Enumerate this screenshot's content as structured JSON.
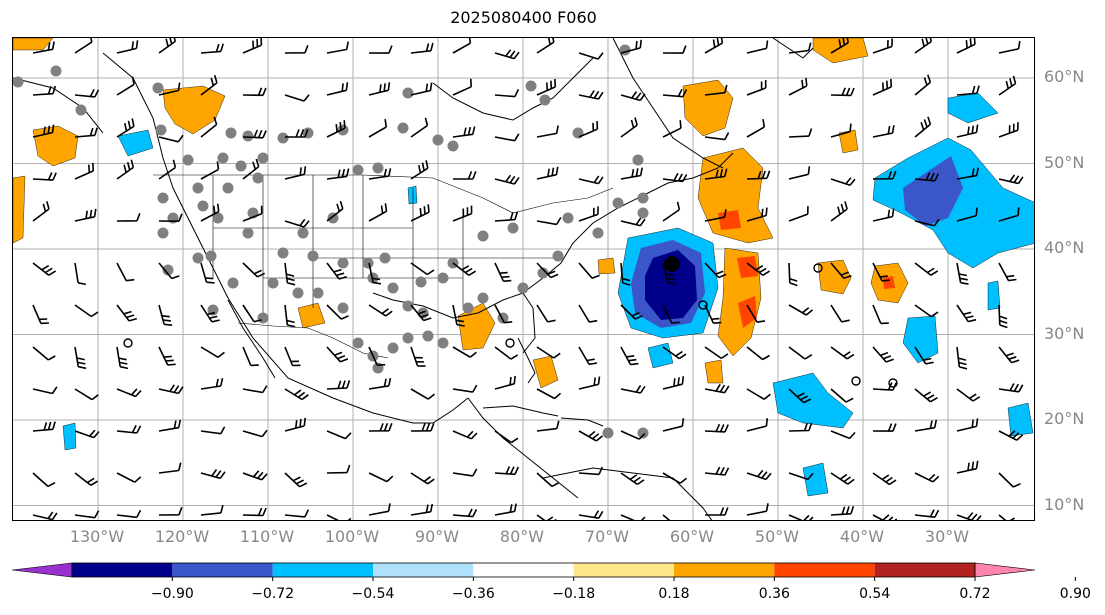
{
  "title": "2025080400 F060",
  "lat_labels": [
    {
      "text": "60°N",
      "lat": 60
    },
    {
      "text": "50°N",
      "lat": 50
    },
    {
      "text": "40°N",
      "lat": 40
    },
    {
      "text": "30°N",
      "lat": 30
    },
    {
      "text": "20°N",
      "lat": 20
    },
    {
      "text": "10°N",
      "lat": 10
    }
  ],
  "lon_labels": [
    {
      "text": "130°W",
      "lon": -130
    },
    {
      "text": "120°W",
      "lon": -120
    },
    {
      "text": "110°W",
      "lon": -110
    },
    {
      "text": "100°W",
      "lon": -100
    },
    {
      "text": "90°W",
      "lon": -90
    },
    {
      "text": "80°W",
      "lon": -80
    },
    {
      "text": "70°W",
      "lon": -70
    },
    {
      "text": "60°W",
      "lon": -60
    },
    {
      "text": "50°W",
      "lon": -50
    },
    {
      "text": "40°W",
      "lon": -40
    },
    {
      "text": "30°W",
      "lon": -30
    }
  ],
  "colorbar": {
    "ticks": [
      "−0.90",
      "−0.72",
      "−0.54",
      "−0.36",
      "−0.18",
      "0.18",
      "0.36",
      "0.54",
      "0.72",
      "0.90"
    ],
    "colors": [
      "#9932cc",
      "#00008b",
      "#3a56c8",
      "#00bfff",
      "#afe1fa",
      "#ffffff",
      "#ffe68a",
      "#ffa500",
      "#ff4500",
      "#b22222",
      "#ff85b0"
    ]
  },
  "colors": {
    "land_outline": "#000000",
    "gridline": "#b0b0b0",
    "marker": "#808080",
    "barb": "#000000"
  }
}
